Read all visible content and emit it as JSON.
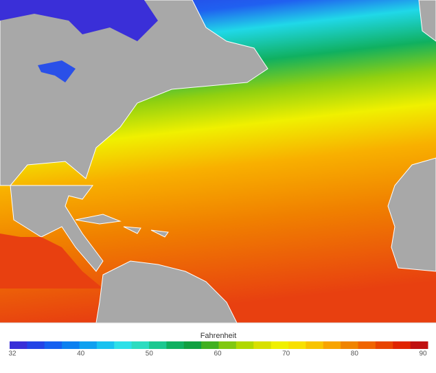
{
  "legend": {
    "title": "Fahrenheit",
    "ticks": [
      32,
      40,
      50,
      60,
      70,
      80,
      90
    ],
    "colors": [
      "#3a2fd8",
      "#2444e6",
      "#1660f0",
      "#0c80f0",
      "#0ea0f0",
      "#18c2f0",
      "#2ce0e8",
      "#2cdcc0",
      "#1cc890",
      "#10b060",
      "#10a040",
      "#40b020",
      "#80c810",
      "#b0d800",
      "#d8e000",
      "#f0f000",
      "#f8e000",
      "#f8c400",
      "#f8a400",
      "#f08400",
      "#f06400",
      "#e84400",
      "#e02400",
      "#c01010"
    ]
  }
}
